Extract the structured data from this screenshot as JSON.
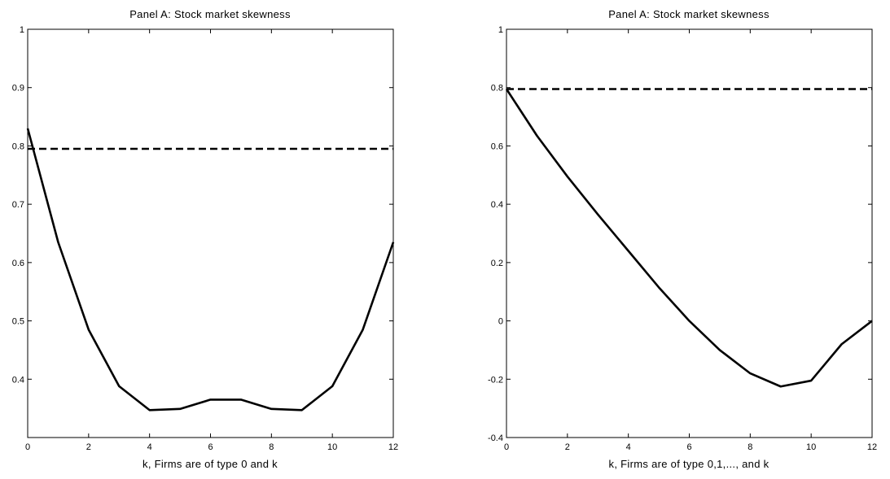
{
  "chart_data": [
    {
      "type": "line",
      "title": "Panel A: Stock market skewness",
      "xlabel": "k, Firms are of type 0 and k",
      "ylabel": "",
      "xlim": [
        0,
        12
      ],
      "ylim": [
        0.3,
        1.0
      ],
      "x_ticks": [
        0,
        2,
        4,
        6,
        8,
        10,
        12
      ],
      "y_ticks": [
        0.4,
        0.5,
        0.6,
        0.7,
        0.8,
        0.9,
        1
      ],
      "x_tick_labels": [
        "0",
        "2",
        "4",
        "6",
        "8",
        "10",
        "12"
      ],
      "y_tick_labels": [
        "0.4",
        "0.5",
        "0.6",
        "0.7",
        "0.8",
        "0.9",
        "1"
      ],
      "grid": false,
      "legend": "none",
      "series": [
        {
          "style": "solid",
          "color": "#000000",
          "x": [
            0,
            1,
            2,
            3,
            4,
            5,
            6,
            7,
            8,
            9,
            10,
            11,
            12
          ],
          "values": [
            0.83,
            0.635,
            0.485,
            0.388,
            0.347,
            0.349,
            0.365,
            0.365,
            0.349,
            0.347,
            0.388,
            0.485,
            0.635
          ]
        },
        {
          "style": "dashed",
          "color": "#000000",
          "x": [
            0,
            12
          ],
          "values": [
            0.795,
            0.795
          ]
        }
      ]
    },
    {
      "type": "line",
      "title": "Panel A: Stock market skewness",
      "xlabel": "k, Firms are of type 0,1,..., and k",
      "ylabel": "",
      "xlim": [
        0,
        12
      ],
      "ylim": [
        -0.4,
        1.0
      ],
      "x_ticks": [
        0,
        2,
        4,
        6,
        8,
        10,
        12
      ],
      "y_ticks": [
        -0.4,
        -0.2,
        0,
        0.2,
        0.4,
        0.6,
        0.8,
        1
      ],
      "x_tick_labels": [
        "0",
        "2",
        "4",
        "6",
        "8",
        "10",
        "12"
      ],
      "y_tick_labels": [
        "-0.4",
        "-0.2",
        "0",
        "0.2",
        "0.4",
        "0.6",
        "0.8",
        "1"
      ],
      "grid": false,
      "legend": "none",
      "series": [
        {
          "style": "solid",
          "color": "#000000",
          "x": [
            0,
            1,
            2,
            3,
            4,
            5,
            6,
            7,
            8,
            9,
            10,
            11,
            12
          ],
          "values": [
            0.795,
            0.635,
            0.495,
            0.365,
            0.24,
            0.115,
            0.0,
            -0.1,
            -0.18,
            -0.225,
            -0.205,
            -0.08,
            0.0
          ]
        },
        {
          "style": "dashed",
          "color": "#000000",
          "x": [
            0,
            12
          ],
          "values": [
            0.795,
            0.795
          ]
        }
      ]
    }
  ]
}
